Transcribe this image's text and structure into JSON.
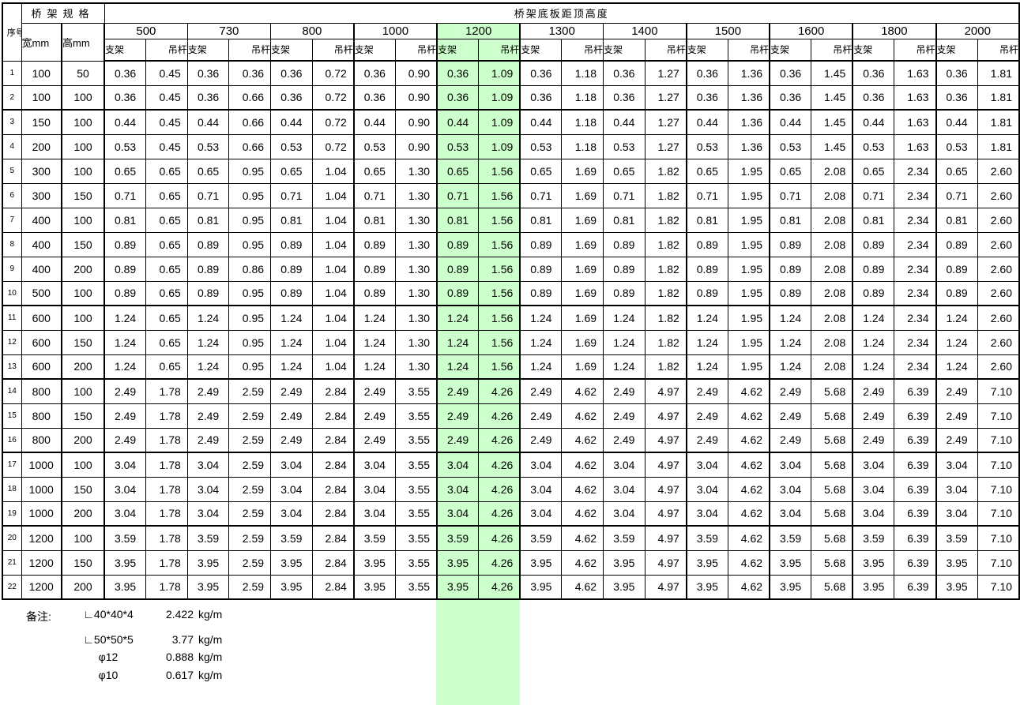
{
  "colors": {
    "highlight": "#ccffcc",
    "border": "#000000",
    "text": "#000000",
    "background": "#ffffff"
  },
  "table": {
    "corner_header": "序号",
    "spec_header": "桥架规格",
    "main_header": "桥架底板距顶高度",
    "width_header": "宽mm",
    "height_header": "高mm",
    "sub_headers": {
      "support": "支架",
      "hanger": "吊杆"
    },
    "height_groups": [
      "500",
      "730",
      "800",
      "1000",
      "1200",
      "1300",
      "1400",
      "1500",
      "1600",
      "1800",
      "2000"
    ],
    "highlighted_group": "1200",
    "rows": [
      {
        "no": "1",
        "width": "100",
        "height": "50",
        "support": "0.36",
        "hangers": [
          "0.45",
          "0.36",
          "0.72",
          "0.90",
          "1.09",
          "1.18",
          "1.27",
          "1.36",
          "1.45",
          "1.63",
          "1.81"
        ]
      },
      {
        "no": "2",
        "width": "100",
        "height": "100",
        "support": "0.36",
        "hangers": [
          "0.45",
          "0.66",
          "0.72",
          "0.90",
          "1.09",
          "1.18",
          "1.27",
          "1.36",
          "1.45",
          "1.63",
          "1.81"
        ]
      },
      {
        "no": "3",
        "width": "150",
        "height": "100",
        "support": "0.44",
        "hangers": [
          "0.45",
          "0.66",
          "0.72",
          "0.90",
          "1.09",
          "1.18",
          "1.27",
          "1.36",
          "1.45",
          "1.63",
          "1.81"
        ]
      },
      {
        "no": "4",
        "width": "200",
        "height": "100",
        "support": "0.53",
        "hangers": [
          "0.45",
          "0.66",
          "0.72",
          "0.90",
          "1.09",
          "1.18",
          "1.27",
          "1.36",
          "1.45",
          "1.63",
          "1.81"
        ]
      },
      {
        "no": "5",
        "width": "300",
        "height": "100",
        "support": "0.65",
        "hangers": [
          "0.65",
          "0.95",
          "1.04",
          "1.30",
          "1.56",
          "1.69",
          "1.82",
          "1.95",
          "2.08",
          "2.34",
          "2.60"
        ]
      },
      {
        "no": "6",
        "width": "300",
        "height": "150",
        "support": "0.71",
        "hangers": [
          "0.65",
          "0.95",
          "1.04",
          "1.30",
          "1.56",
          "1.69",
          "1.82",
          "1.95",
          "2.08",
          "2.34",
          "2.60"
        ]
      },
      {
        "no": "7",
        "width": "400",
        "height": "100",
        "support": "0.81",
        "hangers": [
          "0.65",
          "0.95",
          "1.04",
          "1.30",
          "1.56",
          "1.69",
          "1.82",
          "1.95",
          "2.08",
          "2.34",
          "2.60"
        ]
      },
      {
        "no": "8",
        "width": "400",
        "height": "150",
        "support": "0.89",
        "hangers": [
          "0.65",
          "0.95",
          "1.04",
          "1.30",
          "1.56",
          "1.69",
          "1.82",
          "1.95",
          "2.08",
          "2.34",
          "2.60"
        ]
      },
      {
        "no": "9",
        "width": "400",
        "height": "200",
        "support": "0.89",
        "hangers": [
          "0.65",
          "0.86",
          "1.04",
          "1.30",
          "1.56",
          "1.69",
          "1.82",
          "1.95",
          "2.08",
          "2.34",
          "2.60"
        ]
      },
      {
        "no": "10",
        "width": "500",
        "height": "100",
        "support": "0.89",
        "hangers": [
          "0.65",
          "0.95",
          "1.04",
          "1.30",
          "1.56",
          "1.69",
          "1.82",
          "1.95",
          "2.08",
          "2.34",
          "2.60"
        ]
      },
      {
        "no": "11",
        "width": "600",
        "height": "100",
        "support": "1.24",
        "hangers": [
          "0.65",
          "0.95",
          "1.04",
          "1.30",
          "1.56",
          "1.69",
          "1.82",
          "1.95",
          "2.08",
          "2.34",
          "2.60"
        ]
      },
      {
        "no": "12",
        "width": "600",
        "height": "150",
        "support": "1.24",
        "hangers": [
          "0.65",
          "0.95",
          "1.04",
          "1.30",
          "1.56",
          "1.69",
          "1.82",
          "1.95",
          "2.08",
          "2.34",
          "2.60"
        ]
      },
      {
        "no": "13",
        "width": "600",
        "height": "200",
        "support": "1.24",
        "hangers": [
          "0.65",
          "0.95",
          "1.04",
          "1.30",
          "1.56",
          "1.69",
          "1.82",
          "1.95",
          "2.08",
          "2.34",
          "2.60"
        ]
      },
      {
        "no": "14",
        "width": "800",
        "height": "100",
        "support": "2.49",
        "hangers": [
          "1.78",
          "2.59",
          "2.84",
          "3.55",
          "4.26",
          "4.62",
          "4.97",
          "4.62",
          "5.68",
          "6.39",
          "7.10"
        ]
      },
      {
        "no": "15",
        "width": "800",
        "height": "150",
        "support": "2.49",
        "hangers": [
          "1.78",
          "2.59",
          "2.84",
          "3.55",
          "4.26",
          "4.62",
          "4.97",
          "4.62",
          "5.68",
          "6.39",
          "7.10"
        ]
      },
      {
        "no": "16",
        "width": "800",
        "height": "200",
        "support": "2.49",
        "hangers": [
          "1.78",
          "2.59",
          "2.84",
          "3.55",
          "4.26",
          "4.62",
          "4.97",
          "4.62",
          "5.68",
          "6.39",
          "7.10"
        ]
      },
      {
        "no": "17",
        "width": "1000",
        "height": "100",
        "support": "3.04",
        "hangers": [
          "1.78",
          "2.59",
          "2.84",
          "3.55",
          "4.26",
          "4.62",
          "4.97",
          "4.62",
          "5.68",
          "6.39",
          "7.10"
        ]
      },
      {
        "no": "18",
        "width": "1000",
        "height": "150",
        "support": "3.04",
        "hangers": [
          "1.78",
          "2.59",
          "2.84",
          "3.55",
          "4.26",
          "4.62",
          "4.97",
          "4.62",
          "5.68",
          "6.39",
          "7.10"
        ]
      },
      {
        "no": "19",
        "width": "1000",
        "height": "200",
        "support": "3.04",
        "hangers": [
          "1.78",
          "2.59",
          "2.84",
          "3.55",
          "4.26",
          "4.62",
          "4.97",
          "4.62",
          "5.68",
          "6.39",
          "7.10"
        ]
      },
      {
        "no": "20",
        "width": "1200",
        "height": "100",
        "support": "3.59",
        "hangers": [
          "1.78",
          "2.59",
          "2.84",
          "3.55",
          "4.26",
          "4.62",
          "4.97",
          "4.62",
          "5.68",
          "6.39",
          "7.10"
        ]
      },
      {
        "no": "21",
        "width": "1200",
        "height": "150",
        "support": "3.95",
        "hangers": [
          "1.78",
          "2.59",
          "2.84",
          "3.55",
          "4.26",
          "4.62",
          "4.97",
          "4.62",
          "5.68",
          "6.39",
          "7.10"
        ]
      },
      {
        "no": "22",
        "width": "1200",
        "height": "200",
        "support": "3.95",
        "hangers": [
          "1.78",
          "2.59",
          "2.84",
          "3.55",
          "4.26",
          "4.62",
          "4.97",
          "4.62",
          "5.68",
          "6.39",
          "7.10"
        ]
      }
    ]
  },
  "notes": {
    "label": "备注:",
    "items": [
      {
        "spec": "∟40*40*4",
        "value": "2.422",
        "unit": "kg/m"
      },
      {
        "spec": "∟50*50*5",
        "value": "3.77",
        "unit": "kg/m"
      },
      {
        "spec": "φ12",
        "value": "0.888",
        "unit": "kg/m"
      },
      {
        "spec": "φ10",
        "value": "0.617",
        "unit": "kg/m"
      }
    ]
  }
}
